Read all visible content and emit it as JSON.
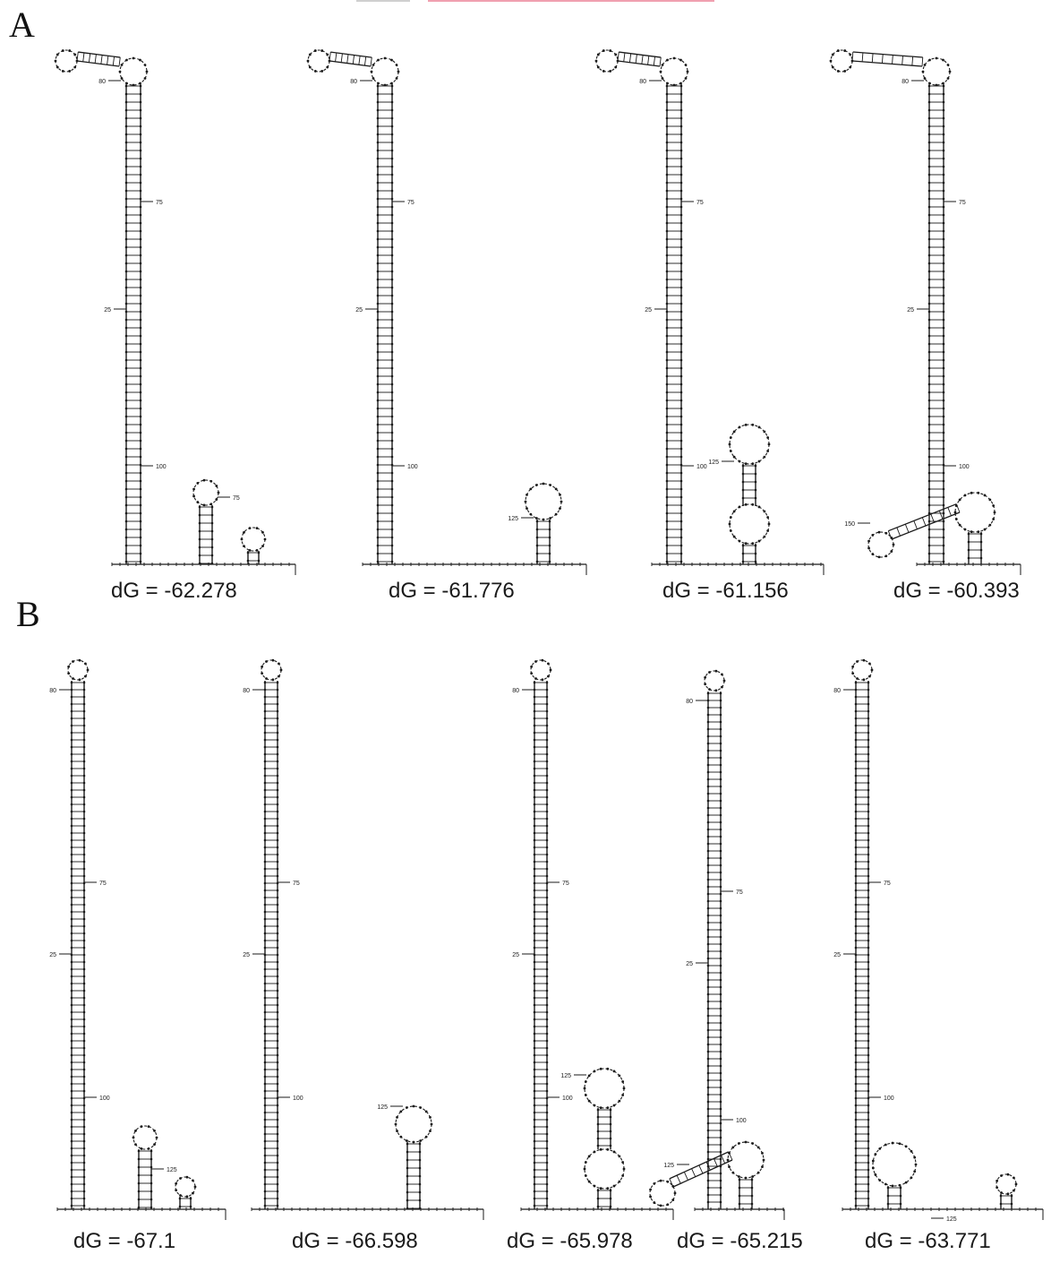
{
  "panels": [
    {
      "label": "A",
      "structures": [
        {
          "dG": "dG = -62.278",
          "marks": {
            "m1": "80",
            "m2": "75",
            "m3": "25",
            "m4": "100",
            "m5": "75"
          }
        },
        {
          "dG": "dG = -61.776",
          "marks": {
            "m1": "80",
            "m2": "75",
            "m3": "25",
            "m4": "100",
            "m5": "125"
          }
        },
        {
          "dG": "dG = -61.156",
          "marks": {
            "m1": "80",
            "m2": "75",
            "m3": "25",
            "m4": "100",
            "m5": "125"
          }
        },
        {
          "dG": "dG = -60.393",
          "marks": {
            "m1": "80",
            "m2": "75",
            "m3": "25",
            "m4": "100",
            "m5": "150"
          }
        }
      ]
    },
    {
      "label": "B",
      "structures": [
        {
          "dG": "dG = -67.1",
          "marks": {
            "m1": "80",
            "m2": "75",
            "m3": "25",
            "m4": "100",
            "m5": "125"
          }
        },
        {
          "dG": "dG = -66.598",
          "marks": {
            "m1": "80",
            "m2": "75",
            "m3": "25",
            "m4": "100",
            "m5": "125"
          }
        },
        {
          "dG": "dG = -65.978",
          "marks": {
            "m1": "80",
            "m2": "75",
            "m3": "25",
            "m4": "100",
            "m5": "125"
          }
        },
        {
          "dG": "dG = -65.215",
          "marks": {
            "m1": "80",
            "m2": "75",
            "m3": "25",
            "m4": "100",
            "m5": "125"
          }
        },
        {
          "dG": "dG = -63.771",
          "marks": {
            "m1": "80",
            "m2": "75",
            "m3": "25",
            "m4": "100",
            "m5": "125"
          }
        }
      ]
    }
  ],
  "colors": {
    "ink": "#1a1a1a",
    "accent_bar": "#f0a0b0"
  }
}
